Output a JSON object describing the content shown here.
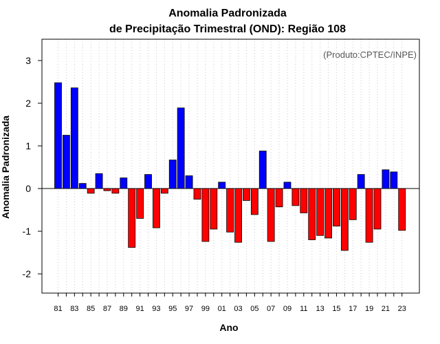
{
  "chart_data": {
    "type": "bar",
    "title_line1": "Anomalia Padronizada",
    "title_line2": "de Precipitação Trimestral (OND): Região 108",
    "xlabel": "Ano",
    "ylabel": "Anomalia Padronizada",
    "credit": "(Produto:CPTEC/INPE)",
    "ylim": [
      -2.45,
      3.5
    ],
    "yticks": [
      -2,
      -1,
      0,
      1,
      2,
      3
    ],
    "ytick_labels": [
      "-2",
      "-1",
      "0",
      "1",
      "2",
      "3"
    ],
    "xtick_labels": [
      "81",
      "83",
      "85",
      "87",
      "89",
      "91",
      "93",
      "95",
      "97",
      "99",
      "01",
      "03",
      "05",
      "07",
      "09",
      "11",
      "13",
      "15",
      "17",
      "19",
      "21",
      "23"
    ],
    "categories": [
      "1981",
      "1982",
      "1983",
      "1984",
      "1985",
      "1986",
      "1987",
      "1988",
      "1989",
      "1990",
      "1991",
      "1992",
      "1993",
      "1994",
      "1995",
      "1996",
      "1997",
      "1998",
      "1999",
      "2000",
      "2001",
      "2002",
      "2003",
      "2004",
      "2005",
      "2006",
      "2007",
      "2008",
      "2009",
      "2010",
      "2011",
      "2012",
      "2013",
      "2014",
      "2015",
      "2016",
      "2017",
      "2018",
      "2019",
      "2020",
      "2021",
      "2022",
      "2023"
    ],
    "values": [
      2.48,
      1.25,
      2.36,
      0.12,
      -0.11,
      0.35,
      -0.05,
      -0.11,
      0.25,
      -1.38,
      -0.7,
      0.33,
      -0.92,
      -0.11,
      0.67,
      1.89,
      0.3,
      -0.25,
      -1.24,
      -0.95,
      0.15,
      -1.02,
      -1.26,
      -0.28,
      -0.61,
      0.88,
      -1.24,
      -0.43,
      0.15,
      -0.4,
      -0.57,
      -1.2,
      -1.1,
      -1.16,
      -0.88,
      -1.45,
      -0.73,
      0.33,
      -1.26,
      -0.95,
      0.44,
      0.39,
      -0.98
    ],
    "colors": {
      "positive": "#0000ff",
      "negative": "#ff0000"
    }
  }
}
